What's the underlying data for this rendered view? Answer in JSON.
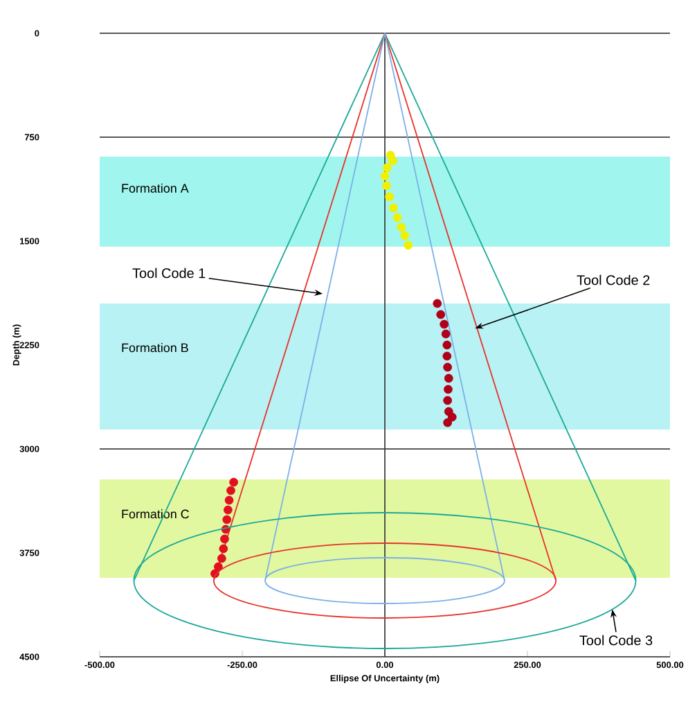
{
  "chart_data": {
    "type": "line",
    "xlabel": "Ellipse Of Uncertainty (m)",
    "ylabel": "Depth (m)",
    "xlim": [
      -500,
      500
    ],
    "ylim": [
      4500,
      0
    ],
    "xticks": [
      {
        "value": -500,
        "label": "-500.00"
      },
      {
        "value": -250,
        "label": "-250.00"
      },
      {
        "value": 0,
        "label": "0.00"
      },
      {
        "value": 250,
        "label": "250.00"
      },
      {
        "value": 500,
        "label": "500.00"
      }
    ],
    "yticks": [
      0,
      750,
      1500,
      2250,
      3000,
      3750,
      4500
    ],
    "grid": "y",
    "ref_lines": [
      {
        "axis": "x",
        "value": 0,
        "color": "#404040"
      }
    ],
    "bands": [
      {
        "axis": "y",
        "from": 890,
        "to": 1540,
        "label": "Formation A",
        "color": "#a0f6ee"
      },
      {
        "axis": "y",
        "from": 1950,
        "to": 2860,
        "label": "Formation B",
        "color": "#b8f2f4"
      },
      {
        "axis": "y",
        "from": 3220,
        "to": 3930,
        "label": "Formation C",
        "color": "#e2f8a0"
      }
    ],
    "series": [
      {
        "color": "#1aa898",
        "x": [
          -440,
          0,
          440
        ],
        "values": [
          3950,
          0,
          3950
        ]
      },
      {
        "color": "#e8302a",
        "x": [
          -300,
          0,
          300
        ],
        "values": [
          3950,
          0,
          3950
        ]
      },
      {
        "color": "#7ab0e8",
        "x": [
          -210,
          0,
          210
        ],
        "values": [
          3950,
          0,
          3950
        ]
      },
      {
        "type": "scatter",
        "marker": "circle",
        "color": "#f0f000",
        "x": [
          10,
          14,
          4,
          0,
          3,
          8,
          15,
          22,
          29,
          35,
          41
        ],
        "values": [
          880,
          920,
          970,
          1030,
          1100,
          1180,
          1260,
          1330,
          1400,
          1460,
          1530
        ]
      },
      {
        "type": "scatter",
        "marker": "circle",
        "color": "#b0001a",
        "x": [
          92,
          98,
          104,
          107,
          109,
          109,
          110,
          112,
          111,
          110,
          112,
          110,
          118
        ],
        "values": [
          1950,
          2030,
          2100,
          2170,
          2250,
          2330,
          2410,
          2490,
          2570,
          2650,
          2730,
          2810,
          2770
        ]
      },
      {
        "type": "scatter",
        "marker": "circle",
        "color": "#e01020",
        "x": [
          -265,
          -270,
          -273,
          -275,
          -277,
          -279,
          -281,
          -283,
          -286,
          -292,
          -298
        ],
        "values": [
          3240,
          3300,
          3370,
          3440,
          3510,
          3580,
          3650,
          3720,
          3790,
          3850,
          3900
        ]
      }
    ],
    "annotations": [
      {
        "text": "Tool Code 1",
        "x": -109,
        "y": 1880
      },
      {
        "text": "Tool Code 2",
        "x": 158,
        "y": 2130
      },
      "Tool Code 3"
    ]
  }
}
